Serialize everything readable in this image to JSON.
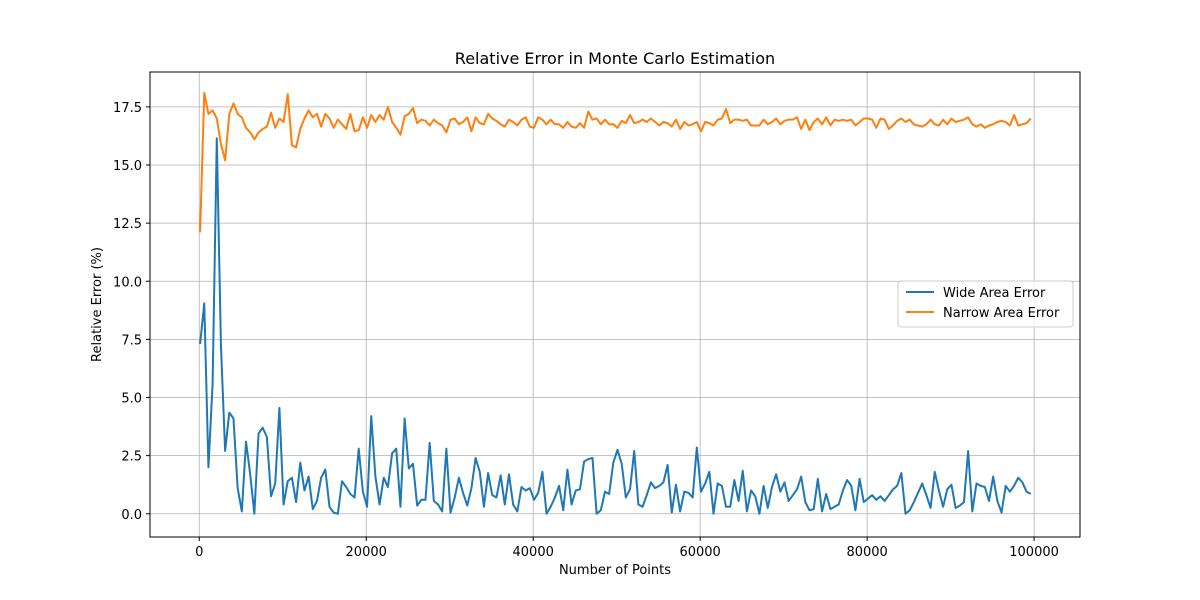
{
  "chart_data": {
    "type": "line",
    "title": "Relative Error in Monte Carlo Estimation",
    "xlabel": "Number of Points",
    "ylabel": "Relative Error (%)",
    "xlim": [
      -5900,
      105500
    ],
    "ylim": [
      -1.0,
      19.0
    ],
    "xticks": [
      0,
      20000,
      40000,
      60000,
      80000,
      100000
    ],
    "xtick_labels": [
      "0",
      "20000",
      "40000",
      "60000",
      "80000",
      "100000"
    ],
    "yticks": [
      0.0,
      2.5,
      5.0,
      7.5,
      10.0,
      12.5,
      15.0,
      17.5
    ],
    "ytick_labels": [
      "0.0",
      "2.5",
      "5.0",
      "7.5",
      "10.0",
      "12.5",
      "15.0",
      "17.5"
    ],
    "grid": true,
    "legend": "center-right",
    "x": {
      "start": 100,
      "step": 500,
      "count": 200
    },
    "series": [
      {
        "name": "Wide Area Error",
        "color": "#1f77b4",
        "values": [
          7.3,
          9.05,
          2.0,
          5.6,
          16.15,
          7.2,
          2.7,
          4.35,
          4.1,
          1.1,
          0.1,
          3.1,
          1.7,
          0.0,
          3.45,
          3.7,
          3.3,
          0.75,
          1.3,
          4.55,
          0.4,
          1.4,
          1.55,
          0.5,
          2.2,
          1.0,
          1.6,
          0.2,
          0.55,
          1.55,
          1.9,
          0.3,
          0.05,
          0.0,
          1.4,
          1.15,
          0.85,
          0.7,
          2.8,
          0.95,
          0.3,
          4.2,
          1.6,
          0.4,
          1.55,
          1.15,
          2.6,
          2.8,
          0.3,
          4.1,
          1.95,
          2.15,
          0.35,
          0.6,
          0.6,
          3.05,
          0.55,
          0.4,
          0.1,
          2.8,
          0.05,
          0.7,
          1.55,
          0.9,
          0.35,
          1.1,
          2.4,
          1.8,
          0.3,
          1.75,
          0.8,
          0.7,
          1.65,
          0.4,
          1.7,
          0.4,
          0.1,
          1.15,
          1.0,
          1.1,
          0.6,
          0.9,
          1.8,
          0.0,
          0.3,
          0.7,
          1.2,
          0.15,
          1.9,
          0.4,
          1.0,
          1.05,
          2.25,
          2.35,
          2.4,
          0.0,
          0.15,
          0.95,
          0.85,
          2.2,
          2.75,
          2.15,
          0.7,
          1.05,
          2.7,
          0.4,
          0.3,
          0.8,
          1.35,
          1.1,
          1.2,
          1.35,
          2.1,
          0.05,
          1.25,
          0.1,
          0.95,
          0.9,
          0.7,
          2.85,
          0.95,
          1.3,
          1.8,
          0.0,
          1.3,
          1.2,
          0.3,
          0.3,
          1.45,
          0.55,
          1.85,
          0.1,
          1.0,
          0.75,
          0.0,
          1.2,
          0.25,
          1.15,
          1.7,
          0.95,
          1.35,
          0.55,
          0.8,
          1.05,
          1.6,
          0.5,
          0.15,
          0.2,
          1.5,
          0.1,
          0.85,
          0.2,
          0.3,
          0.4,
          1.0,
          1.45,
          1.2,
          0.15,
          1.5,
          0.5,
          0.65,
          0.8,
          0.6,
          0.75,
          0.55,
          0.8,
          1.05,
          1.2,
          1.75,
          0.0,
          0.15,
          0.5,
          0.9,
          1.3,
          0.8,
          0.25,
          1.8,
          1.0,
          0.3,
          1.05,
          1.25,
          0.25,
          0.35,
          0.5,
          2.7,
          0.1,
          1.3,
          1.2,
          1.15,
          0.55,
          1.6,
          0.55,
          0.05,
          1.2,
          0.95,
          1.2,
          1.55,
          1.35,
          0.95,
          0.85
        ]
      },
      {
        "name": "Narrow Area Error",
        "color": "#ff7f0e",
        "values": [
          12.1,
          18.1,
          17.2,
          17.35,
          17.0,
          15.9,
          15.2,
          17.2,
          17.65,
          17.2,
          17.05,
          16.6,
          16.4,
          16.1,
          16.4,
          16.55,
          16.65,
          17.25,
          16.6,
          17.0,
          16.85,
          18.05,
          15.85,
          15.75,
          16.55,
          17.0,
          17.35,
          17.05,
          17.2,
          16.65,
          17.2,
          17.0,
          16.6,
          16.95,
          16.75,
          16.55,
          17.2,
          16.45,
          16.5,
          17.05,
          16.6,
          17.15,
          16.85,
          17.15,
          16.95,
          17.5,
          16.85,
          16.6,
          16.3,
          17.1,
          17.2,
          17.45,
          16.8,
          16.95,
          16.9,
          16.7,
          16.95,
          16.8,
          16.7,
          16.4,
          16.95,
          17.0,
          16.75,
          16.85,
          17.05,
          16.45,
          17.05,
          16.8,
          16.75,
          17.2,
          17.0,
          16.9,
          16.75,
          16.65,
          16.95,
          16.85,
          16.7,
          16.95,
          17.05,
          16.65,
          16.6,
          17.05,
          16.95,
          16.75,
          16.95,
          16.75,
          16.75,
          16.6,
          16.85,
          16.65,
          16.6,
          16.8,
          16.6,
          17.3,
          16.95,
          17.0,
          16.75,
          16.95,
          16.75,
          16.75,
          16.6,
          16.9,
          16.8,
          17.15,
          16.8,
          16.85,
          16.95,
          16.85,
          17.0,
          16.85,
          16.7,
          16.85,
          16.8,
          16.65,
          16.95,
          16.55,
          16.85,
          16.7,
          16.75,
          16.85,
          16.45,
          16.85,
          16.8,
          16.7,
          16.95,
          17.0,
          17.4,
          16.8,
          16.95,
          16.95,
          16.9,
          16.95,
          16.7,
          16.7,
          16.7,
          16.95,
          16.75,
          16.85,
          17.0,
          16.75,
          16.9,
          16.95,
          16.95,
          17.05,
          16.55,
          16.95,
          16.5,
          16.85,
          17.0,
          16.75,
          17.05,
          16.7,
          16.95,
          16.9,
          16.95,
          16.9,
          16.95,
          16.7,
          16.85,
          17.0,
          17.0,
          16.95,
          16.6,
          17.0,
          16.95,
          16.55,
          16.7,
          16.9,
          17.0,
          16.85,
          16.95,
          16.75,
          16.7,
          16.65,
          16.75,
          16.95,
          16.75,
          16.7,
          16.95,
          16.75,
          17.0,
          16.85,
          16.9,
          16.95,
          17.05,
          16.75,
          16.65,
          16.75,
          16.6,
          16.7,
          16.75,
          16.85,
          16.9,
          16.85,
          16.7,
          17.15,
          16.7,
          16.75,
          16.8,
          17.0,
          16.9,
          16.75
        ]
      }
    ]
  }
}
